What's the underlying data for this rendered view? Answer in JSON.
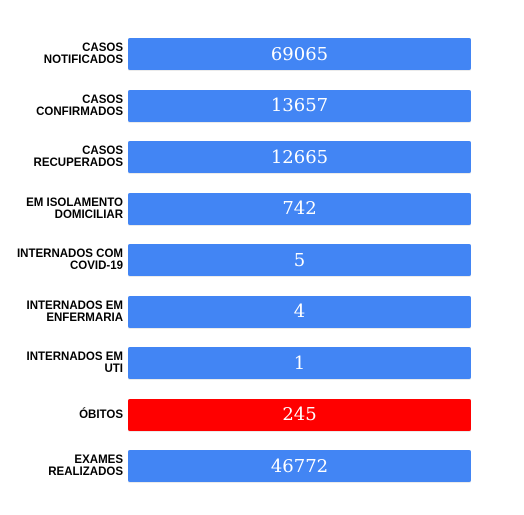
{
  "rows": [
    {
      "label": "CASOS NOTIFICADOS",
      "value": "69065",
      "color": "#4285f4"
    },
    {
      "label": "CASOS CONFIRMADOS",
      "value": "13657",
      "color": "#4285f4"
    },
    {
      "label": "CASOS RECUPERADOS",
      "value": "12665",
      "color": "#4285f4"
    },
    {
      "label": "EM ISOLAMENTO DOMICILIAR",
      "value": "742",
      "color": "#4285f4"
    },
    {
      "label": "INTERNADOS COM COVID-19",
      "value": "5",
      "color": "#4285f4"
    },
    {
      "label": "INTERNADOS EM ENFERMARIA",
      "value": "4",
      "color": "#4285f4"
    },
    {
      "label": "INTERNADOS EM UTI",
      "value": "1",
      "color": "#4285f4"
    },
    {
      "label": "ÓBITOS",
      "value": "245",
      "color": "#ff0000"
    },
    {
      "label": "EXAMES REALIZADOS",
      "value": "46772",
      "color": "#4285f4"
    }
  ]
}
